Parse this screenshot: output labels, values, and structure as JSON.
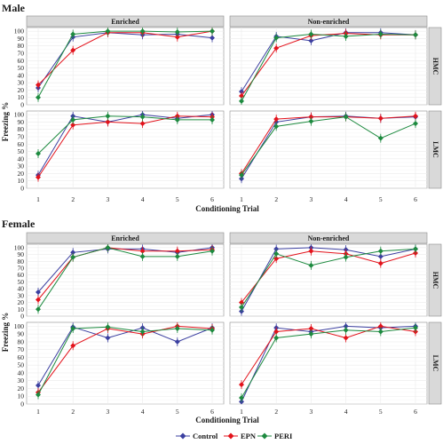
{
  "colors": {
    "Control": "#3b3fa0",
    "EPN": "#e3121b",
    "PERI": "#1d8a3f"
  },
  "legend": {
    "entries": [
      "Control",
      "EPN",
      "PERI"
    ]
  },
  "chart_data": [
    {
      "title": "Male",
      "type": "line",
      "xlabel": "Conditioning Trial",
      "ylabel": "Freezing %",
      "x": [
        1,
        2,
        3,
        4,
        5,
        6
      ],
      "xticks": [
        "1",
        "2",
        "3",
        "4",
        "5",
        "6"
      ],
      "yticks": [
        "0",
        "10",
        "20",
        "30",
        "40",
        "50",
        "60",
        "70",
        "80",
        "90",
        "100"
      ],
      "ylim": [
        0,
        105
      ],
      "columns": [
        "Enriched",
        "Non-enriched"
      ],
      "rows": [
        "HMC",
        "LMC"
      ],
      "panels": [
        {
          "column": "Enriched",
          "row": "HMC",
          "series": [
            {
              "name": "Control",
              "values": [
                23,
                92,
                98,
                95,
                96,
                91
              ]
            },
            {
              "name": "EPN",
              "values": [
                27,
                74,
                98,
                98,
                92,
                100
              ]
            },
            {
              "name": "PERI",
              "values": [
                10,
                96,
                100,
                100,
                99,
                100
              ]
            }
          ]
        },
        {
          "column": "Non-enriched",
          "row": "HMC",
          "series": [
            {
              "name": "Control",
              "values": [
                18,
                93,
                87,
                98,
                98,
                95
              ]
            },
            {
              "name": "EPN",
              "values": [
                12,
                77,
                94,
                97,
                95,
                95
              ]
            },
            {
              "name": "PERI",
              "values": [
                5,
                91,
                96,
                93,
                96,
                95
              ]
            }
          ]
        },
        {
          "column": "Enriched",
          "row": "LMC",
          "series": [
            {
              "name": "Control",
              "values": [
                18,
                98,
                90,
                100,
                95,
                100
              ]
            },
            {
              "name": "EPN",
              "values": [
                15,
                86,
                90,
                88,
                98,
                97
              ]
            },
            {
              "name": "PERI",
              "values": [
                47,
                93,
                98,
                97,
                93,
                93
              ]
            }
          ]
        },
        {
          "column": "Non-enriched",
          "row": "LMC",
          "series": [
            {
              "name": "Control",
              "values": [
                13,
                90,
                97,
                98,
                95,
                97
              ]
            },
            {
              "name": "EPN",
              "values": [
                20,
                94,
                97,
                97,
                95,
                98
              ]
            },
            {
              "name": "PERI",
              "values": [
                18,
                84,
                91,
                97,
                68,
                88
              ]
            }
          ]
        }
      ]
    },
    {
      "title": "Female",
      "type": "line",
      "xlabel": "Conditioning Trial",
      "ylabel": "Freezing %",
      "x": [
        1,
        2,
        3,
        4,
        5,
        6
      ],
      "xticks": [
        "1",
        "2",
        "3",
        "4",
        "5",
        "6"
      ],
      "yticks": [
        "0",
        "10",
        "20",
        "30",
        "40",
        "50",
        "60",
        "70",
        "80",
        "90",
        "100"
      ],
      "ylim": [
        0,
        105
      ],
      "columns": [
        "Enriched",
        "Non-enriched"
      ],
      "rows": [
        "HMC",
        "LMC"
      ],
      "panels": [
        {
          "column": "Enriched",
          "row": "HMC",
          "series": [
            {
              "name": "Control",
              "values": [
                35,
                93,
                98,
                98,
                93,
                100
              ]
            },
            {
              "name": "EPN",
              "values": [
                24,
                86,
                100,
                95,
                95,
                97
              ]
            },
            {
              "name": "PERI",
              "values": [
                10,
                86,
                100,
                87,
                87,
                95
              ]
            }
          ]
        },
        {
          "column": "Non-enriched",
          "row": "HMC",
          "series": [
            {
              "name": "Control",
              "values": [
                7,
                98,
                100,
                97,
                87,
                98
              ]
            },
            {
              "name": "EPN",
              "values": [
                20,
                84,
                95,
                91,
                77,
                92
              ]
            },
            {
              "name": "PERI",
              "values": [
                13,
                91,
                74,
                86,
                95,
                98
              ]
            }
          ]
        },
        {
          "column": "Enriched",
          "row": "LMC",
          "series": [
            {
              "name": "Control",
              "values": [
                24,
                99,
                85,
                98,
                80,
                98
              ]
            },
            {
              "name": "EPN",
              "values": [
                15,
                75,
                97,
                90,
                100,
                97
              ]
            },
            {
              "name": "PERI",
              "values": [
                12,
                97,
                99,
                93,
                97,
                95
              ]
            }
          ]
        },
        {
          "column": "Non-enriched",
          "row": "LMC",
          "series": [
            {
              "name": "Control",
              "values": [
                3,
                98,
                93,
                100,
                98,
                100
              ]
            },
            {
              "name": "EPN",
              "values": [
                25,
                93,
                97,
                85,
                100,
                93
              ]
            },
            {
              "name": "PERI",
              "values": [
                8,
                85,
                90,
                95,
                93,
                98
              ]
            }
          ]
        }
      ]
    }
  ]
}
